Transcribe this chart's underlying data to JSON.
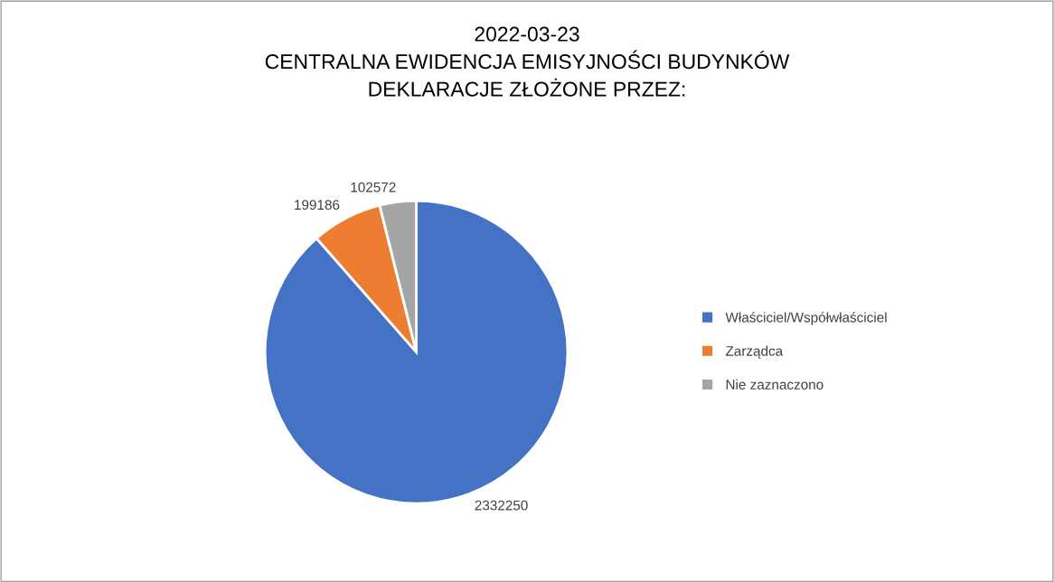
{
  "chart_data": {
    "type": "pie",
    "title": "2022-03-23\nCENTRALNA EWIDENCJA EMISYJNOŚCI BUDYNKÓW\nDEKLARACJE ZŁOŻONE PRZEZ:",
    "categories": [
      "Właściciel/Współwłaściciel",
      "Zarządca",
      "Nie zaznaczono"
    ],
    "values": [
      2332250,
      199186,
      102572
    ],
    "colors": [
      "#4472c4",
      "#ed7d31",
      "#a5a5a5"
    ],
    "data_labels": true,
    "legend": "right"
  }
}
